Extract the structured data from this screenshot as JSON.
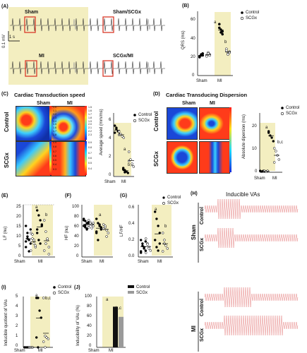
{
  "panels": {
    "A": {
      "label": "(A)",
      "groups": [
        "Sham",
        "Sham/SCGx",
        "MI",
        "SCGx/MI"
      ],
      "scale_time": "1 s",
      "scale_volt": "0.1 mV"
    },
    "B": {
      "label": "(B)",
      "ylabel": "QRS (ms)",
      "legend": [
        "Control",
        "SCGx"
      ],
      "xticks": [
        "Sham",
        "MI"
      ],
      "yticks": [
        "0",
        "20",
        "40",
        "60"
      ],
      "sig": [
        "a",
        "b"
      ]
    },
    "C": {
      "label": "(C)",
      "title": "Cardiac Transduction speed",
      "cols": [
        "Sham",
        "MI"
      ],
      "rows": [
        "Control",
        "SCGx"
      ],
      "ylabel": "Average speed (mm/ms)",
      "yticks": [
        "0",
        "2",
        "4",
        "6"
      ],
      "xticks": [
        "Sham",
        "MI"
      ],
      "legend": [
        "Control",
        "SCGx"
      ],
      "sig": [
        "a",
        "b,c"
      ],
      "cbar1": [
        "1.5",
        "1.6",
        "1.7",
        "1.8",
        "1.9",
        "2.0",
        "2.1",
        "2.2",
        "2.3"
      ],
      "cbar2": [
        "1.0",
        "1.1",
        "1.2",
        "1.3",
        "1.4",
        "1.5",
        "1.6",
        "1.7",
        "1.8"
      ],
      "cbar3": [
        "0.9",
        "0.8",
        "0.7",
        "0.6",
        "0.5",
        "0.4",
        "0.3"
      ],
      "cbar4": [
        "0.9",
        "0.8",
        "0.7",
        "0.6",
        "0.5",
        "0.4"
      ]
    },
    "D": {
      "label": "(D)",
      "title": "Cardiac Transducing Dispersion",
      "cols": [
        "Sham",
        "MI"
      ],
      "rows": [
        "Control",
        "SCGx"
      ],
      "ylabel": "Absolute dipersion (ms)",
      "yticks": [
        "0",
        "10",
        "20"
      ],
      "xticks": [
        "Sham",
        "MI"
      ],
      "legend": [
        "Control",
        "SCGx"
      ],
      "sig": [
        "a",
        "b,c"
      ]
    },
    "E": {
      "label": "(E)",
      "ylabel": "LF (nu)",
      "yticks": [
        "0",
        "5",
        "10",
        "15",
        "20",
        "25"
      ],
      "xticks": [
        "Sham",
        "MI"
      ],
      "sig": [
        "a",
        "b"
      ]
    },
    "F": {
      "label": "(F)",
      "ylabel": "HF (nu)",
      "yticks": [
        "0",
        "20",
        "40",
        "60",
        "80",
        "100"
      ],
      "xticks": [
        "Sham",
        "MI"
      ],
      "sig": [
        "a"
      ]
    },
    "G": {
      "label": "(G)",
      "ylabel": "LF/HF",
      "yticks": [
        "0.0",
        "0.2",
        "0.4",
        "0.6"
      ],
      "xticks": [
        "Sham",
        "MI"
      ],
      "legend": [
        "Control",
        "SCGx"
      ],
      "sig": [
        "a",
        "b"
      ]
    },
    "H": {
      "label": "(H)",
      "title": "Inducible VAs",
      "groups": [
        "Sham",
        "MI"
      ],
      "rows": [
        "Control",
        "SCGx",
        "Control",
        "SCGx"
      ]
    },
    "I": {
      "label": "(I)",
      "ylabel": "Inducible quotient of VAs",
      "yticks": [
        "0",
        "1",
        "2",
        "3",
        "4",
        "5"
      ],
      "xticks": [
        "Sham",
        "MI"
      ],
      "legend": [
        "Control",
        "SCGx"
      ],
      "sig": [
        "a",
        "b,c"
      ]
    },
    "J": {
      "label": "(J)",
      "ylabel": "Inducibility of VAs (%)",
      "yticks": [
        "0",
        "20",
        "40",
        "60",
        "80",
        "100"
      ],
      "xticks": [
        "Sham",
        "MI"
      ],
      "legend": [
        "Control",
        "SCGx"
      ],
      "sig": [
        "a",
        "b,c"
      ]
    }
  },
  "chart_data": [
    {
      "type": "bar",
      "panel": "J",
      "categories": [
        "Sham",
        "MI"
      ],
      "series": [
        {
          "name": "Control",
          "values": [
            0,
            80
          ]
        },
        {
          "name": "SCGx",
          "values": [
            0,
            60
          ]
        }
      ],
      "ylim": [
        0,
        100
      ]
    },
    {
      "type": "scatter",
      "panel": "B",
      "categories": [
        "Sham",
        "MI"
      ],
      "series": [
        {
          "name": "Control",
          "values": [
            [
              20,
              22,
              24,
              21,
              23,
              22
            ],
            [
              52,
              47,
              45,
              56,
              50,
              48
            ]
          ]
        },
        {
          "name": "SCGx",
          "values": [
            [
              22,
              25,
              23,
              21,
              24,
              22
            ],
            [
              27,
              24,
              26,
              29,
              23,
              25
            ]
          ]
        }
      ],
      "ylim": [
        0,
        70
      ]
    }
  ],
  "colors": {
    "yellow_bg": "#f3eec0",
    "trace_red": "#e58080",
    "box_red": "#d93a2a",
    "black_bar": "#111111",
    "grey_bar": "#9a9a9a"
  }
}
